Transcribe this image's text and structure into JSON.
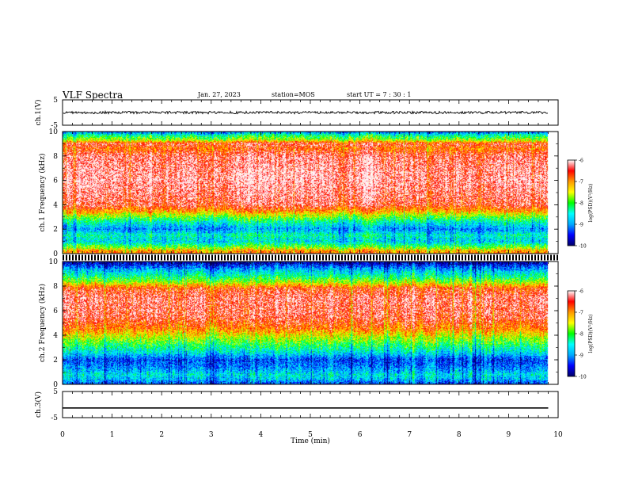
{
  "header": {
    "title": "VLF Spectra",
    "date": "Jan. 27, 2023",
    "station": "station=MOS",
    "start_ut": "start UT =  7 : 30 : 1"
  },
  "chart_data": [
    {
      "type": "line",
      "panel": "ch1-waveform",
      "ylabel": "ch.1(V)",
      "ylim": [
        -5,
        5
      ],
      "yticks": [
        "5",
        "-5"
      ],
      "xlim": [
        0,
        10
      ],
      "series": [
        {
          "x": [
            0,
            9.8
          ],
          "y": [
            0,
            0
          ],
          "noise_amplitude_v": 0.5
        }
      ]
    },
    {
      "type": "heatmap",
      "panel": "ch1-spectrogram",
      "ylabel": "ch.1 Frequency (kHz)",
      "ylim": [
        0,
        10
      ],
      "yticks": [
        "0",
        "2",
        "4",
        "6",
        "8",
        "10"
      ],
      "xlim": [
        0,
        10
      ],
      "data_extent_min": 9.8,
      "log_psd_profile": [
        {
          "f": 0.0,
          "v": -6.9
        },
        {
          "f": 0.25,
          "v": -7.1
        },
        {
          "f": 0.5,
          "v": -7.8
        },
        {
          "f": 1.0,
          "v": -8.7
        },
        {
          "f": 1.5,
          "v": -8.4
        },
        {
          "f": 2.0,
          "v": -9.0
        },
        {
          "f": 2.5,
          "v": -8.5
        },
        {
          "f": 3.0,
          "v": -7.8
        },
        {
          "f": 3.5,
          "v": -7.0
        },
        {
          "f": 4.0,
          "v": -6.4
        },
        {
          "f": 6.0,
          "v": -6.1
        },
        {
          "f": 8.0,
          "v": -6.3
        },
        {
          "f": 8.6,
          "v": -6.8
        },
        {
          "f": 9.0,
          "v": -6.4
        },
        {
          "f": 9.3,
          "v": -7.6
        },
        {
          "f": 9.7,
          "v": -8.3
        },
        {
          "f": 10.0,
          "v": -9.2
        }
      ]
    },
    {
      "type": "heatmap",
      "panel": "ch2-spectrogram",
      "ylabel": "ch.2 Frequency (kHz)",
      "ylim": [
        0,
        10
      ],
      "yticks": [
        "0",
        "2",
        "4",
        "6",
        "8",
        "10"
      ],
      "xlim": [
        0,
        10
      ],
      "data_extent_min": 9.8,
      "log_psd_profile": [
        {
          "f": 0.0,
          "v": -9.4
        },
        {
          "f": 0.4,
          "v": -8.8
        },
        {
          "f": 0.8,
          "v": -8.6
        },
        {
          "f": 1.4,
          "v": -9.1
        },
        {
          "f": 2.0,
          "v": -9.3
        },
        {
          "f": 2.6,
          "v": -8.6
        },
        {
          "f": 3.2,
          "v": -8.1
        },
        {
          "f": 3.8,
          "v": -7.6
        },
        {
          "f": 4.5,
          "v": -6.9
        },
        {
          "f": 5.5,
          "v": -6.4
        },
        {
          "f": 7.0,
          "v": -6.3
        },
        {
          "f": 7.8,
          "v": -6.6
        },
        {
          "f": 8.3,
          "v": -7.6
        },
        {
          "f": 8.8,
          "v": -8.3
        },
        {
          "f": 9.3,
          "v": -8.8
        },
        {
          "f": 9.7,
          "v": -9.4
        },
        {
          "f": 10.0,
          "v": -9.9
        }
      ]
    },
    {
      "type": "line",
      "panel": "ch3-waveform",
      "ylabel": "ch.3(V)",
      "ylim": [
        -5,
        5
      ],
      "yticks": [
        "5",
        "-5"
      ],
      "xlim": [
        0,
        10
      ],
      "series": [
        {
          "x": [
            0,
            9.8
          ],
          "y": [
            -1.3,
            -1.3
          ]
        }
      ]
    }
  ],
  "x_axis": {
    "label": "Time (min)",
    "ticks": [
      "0",
      "1",
      "2",
      "3",
      "4",
      "5",
      "6",
      "7",
      "8",
      "9",
      "10"
    ]
  },
  "colorbar": {
    "label": "log(PSD)(V²/Hz)",
    "ticks": [
      "-6",
      "-7",
      "-8",
      "-9",
      "-10"
    ],
    "range": [
      -10,
      -6
    ],
    "colors": [
      "#000066",
      "#0000ff",
      "#00aaff",
      "#00ffff",
      "#00ff00",
      "#ffff00",
      "#ff9900",
      "#ff0000",
      "#ffffff"
    ]
  }
}
